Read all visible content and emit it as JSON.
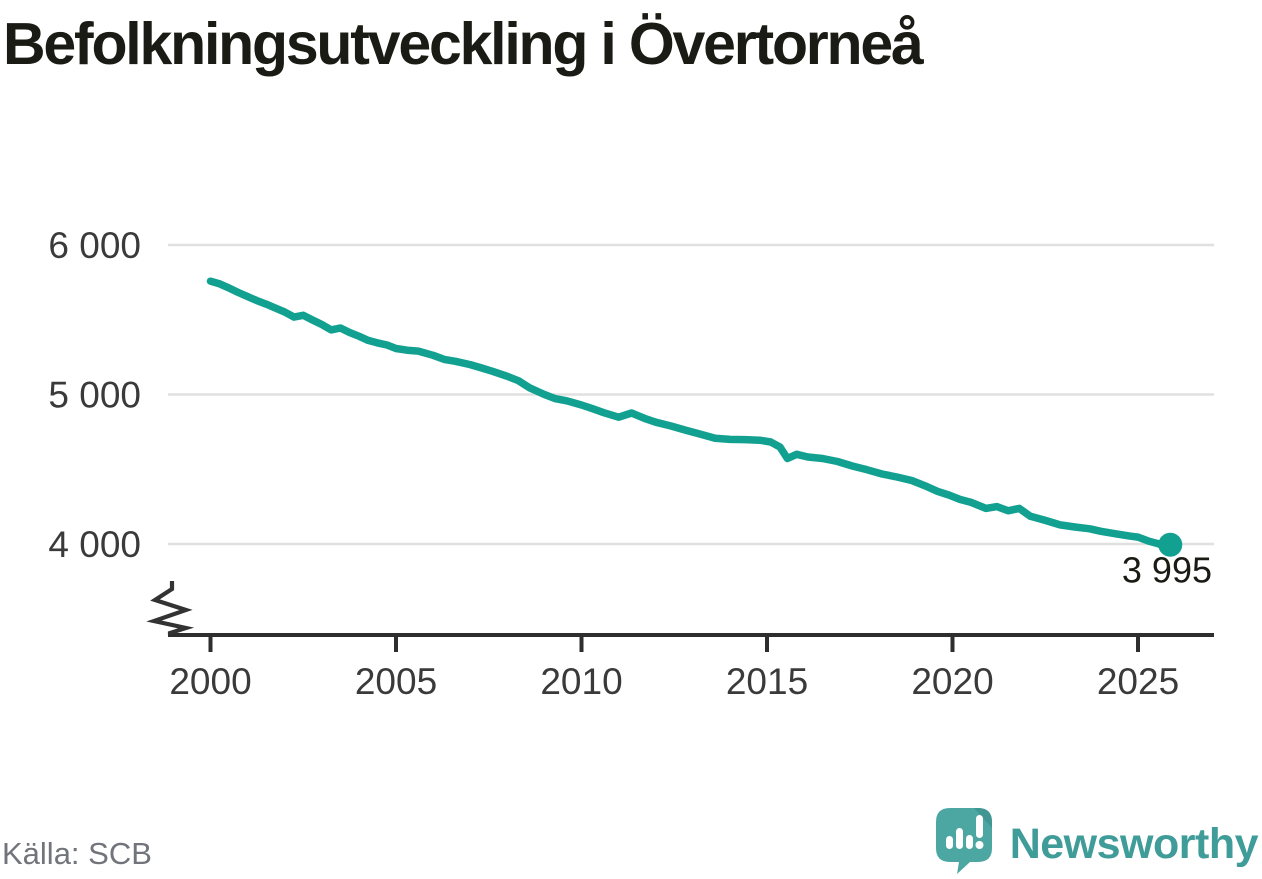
{
  "header": {
    "title": "Befolkningsutveckling i Övertorneå"
  },
  "footer": {
    "source": "Källa: SCB",
    "brand": {
      "name": "Newsworthy",
      "icon": "newsworthy-logo-icon"
    }
  },
  "colors": {
    "background": "#FFFFFF",
    "line": "#12A191",
    "grid": "#E0E0E0",
    "axis": "#2E2E2E",
    "axis_break": "#333333",
    "tick_label": "#3A3A3A",
    "title": "#1B1B15",
    "end_label": "#1B1B15",
    "source_text": "#72747B",
    "logo_mark": "#4CA7A2",
    "logo_mark_shade": "#3E938F",
    "logo_text": "#3F9C98"
  },
  "chart_data": {
    "type": "line",
    "title": "Befolkningsutveckling i Övertorneå",
    "xlabel": "",
    "ylabel": "",
    "source": "Källa: SCB",
    "grid": "horizontal",
    "legend": "none",
    "axis_break_on_y": true,
    "xlim": [
      1998.85,
      2027.1
    ],
    "ylim": [
      3390,
      6650
    ],
    "y_ticks": [
      {
        "value": 6000,
        "label": "6 000"
      },
      {
        "value": 5000,
        "label": "5 000"
      },
      {
        "value": 4000,
        "label": "4 000"
      }
    ],
    "x_ticks": [
      {
        "value": 2000,
        "label": "2000"
      },
      {
        "value": 2005,
        "label": "2005"
      },
      {
        "value": 2010,
        "label": "2010"
      },
      {
        "value": 2015,
        "label": "2015"
      },
      {
        "value": 2020,
        "label": "2020"
      },
      {
        "value": 2025,
        "label": "2025"
      }
    ],
    "end_annotation": {
      "label": "3 995",
      "value": 3995,
      "year": 2025.87
    },
    "series": [
      {
        "points": [
          [
            2000.0,
            5758
          ],
          [
            2000.25,
            5740
          ],
          [
            2000.5,
            5712
          ],
          [
            2000.75,
            5682
          ],
          [
            2001.0,
            5655
          ],
          [
            2001.25,
            5628
          ],
          [
            2001.5,
            5605
          ],
          [
            2001.75,
            5578
          ],
          [
            2002.0,
            5552
          ],
          [
            2002.25,
            5518
          ],
          [
            2002.5,
            5530
          ],
          [
            2002.75,
            5498
          ],
          [
            2003.0,
            5468
          ],
          [
            2003.25,
            5432
          ],
          [
            2003.5,
            5445
          ],
          [
            2003.75,
            5415
          ],
          [
            2004.0,
            5390
          ],
          [
            2004.25,
            5362
          ],
          [
            2004.5,
            5345
          ],
          [
            2004.75,
            5332
          ],
          [
            2005.0,
            5308
          ],
          [
            2005.3,
            5296
          ],
          [
            2005.6,
            5290
          ],
          [
            2006.0,
            5262
          ],
          [
            2006.3,
            5235
          ],
          [
            2006.6,
            5222
          ],
          [
            2007.0,
            5200
          ],
          [
            2007.3,
            5178
          ],
          [
            2007.6,
            5155
          ],
          [
            2008.0,
            5122
          ],
          [
            2008.3,
            5092
          ],
          [
            2008.6,
            5045
          ],
          [
            2009.0,
            5000
          ],
          [
            2009.3,
            4972
          ],
          [
            2009.6,
            4958
          ],
          [
            2010.0,
            4930
          ],
          [
            2010.3,
            4905
          ],
          [
            2010.6,
            4878
          ],
          [
            2011.0,
            4848
          ],
          [
            2011.35,
            4876
          ],
          [
            2011.7,
            4840
          ],
          [
            2012.0,
            4815
          ],
          [
            2012.4,
            4790
          ],
          [
            2012.8,
            4762
          ],
          [
            2013.2,
            4735
          ],
          [
            2013.6,
            4708
          ],
          [
            2014.0,
            4700
          ],
          [
            2014.4,
            4698
          ],
          [
            2014.8,
            4694
          ],
          [
            2015.1,
            4682
          ],
          [
            2015.35,
            4648
          ],
          [
            2015.55,
            4572
          ],
          [
            2015.8,
            4600
          ],
          [
            2016.1,
            4582
          ],
          [
            2016.5,
            4572
          ],
          [
            2016.9,
            4552
          ],
          [
            2017.3,
            4522
          ],
          [
            2017.7,
            4496
          ],
          [
            2018.1,
            4468
          ],
          [
            2018.5,
            4448
          ],
          [
            2018.9,
            4425
          ],
          [
            2019.3,
            4385
          ],
          [
            2019.6,
            4352
          ],
          [
            2019.9,
            4328
          ],
          [
            2020.2,
            4298
          ],
          [
            2020.5,
            4278
          ],
          [
            2020.9,
            4238
          ],
          [
            2021.2,
            4250
          ],
          [
            2021.5,
            4222
          ],
          [
            2021.8,
            4238
          ],
          [
            2022.1,
            4185
          ],
          [
            2022.5,
            4158
          ],
          [
            2022.9,
            4128
          ],
          [
            2023.3,
            4114
          ],
          [
            2023.7,
            4102
          ],
          [
            2024.0,
            4085
          ],
          [
            2024.4,
            4068
          ],
          [
            2024.8,
            4052
          ],
          [
            2025.0,
            4046
          ],
          [
            2025.3,
            4018
          ],
          [
            2025.55,
            4002
          ],
          [
            2025.72,
            3980
          ],
          [
            2025.87,
            3995
          ]
        ]
      }
    ]
  }
}
